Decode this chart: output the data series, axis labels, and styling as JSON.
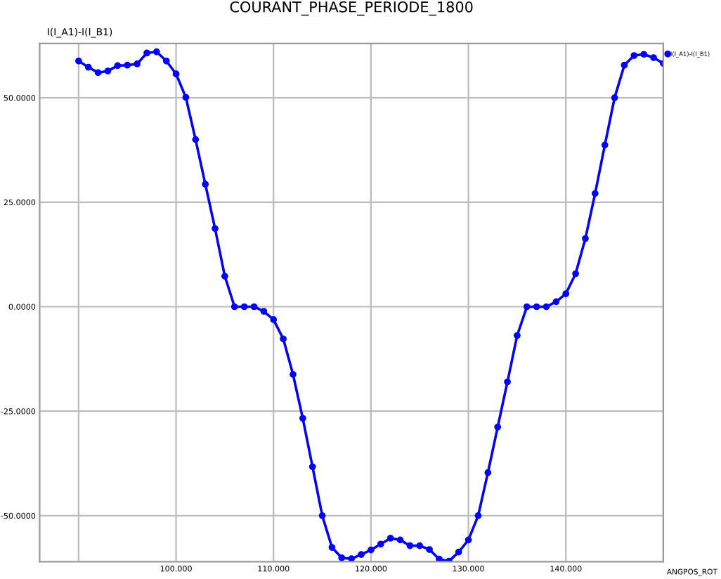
{
  "chart_data": {
    "type": "line",
    "title": "COURANT_PHASE_PERIODE_1800",
    "xlabel": "ANGPOS_ROT",
    "ylabel": "I(I_A1)-I(I_B1)",
    "x": [
      90,
      91,
      92,
      93,
      94,
      95,
      96,
      97,
      98,
      99,
      100,
      101,
      102,
      103,
      104,
      105,
      106,
      107,
      108,
      109,
      110,
      111,
      112,
      113,
      114,
      115,
      116,
      117,
      118,
      119,
      120,
      121,
      122,
      123,
      124,
      125,
      126,
      127,
      128,
      129,
      130,
      131,
      132,
      133,
      134,
      135,
      136,
      137,
      138,
      139,
      140,
      141,
      142,
      143,
      144,
      145,
      146,
      147,
      148,
      149,
      150
    ],
    "series": [
      {
        "name": "I(I_A1)-I(I_B1)",
        "color": "#0000ff",
        "values": [
          58.8,
          57.3,
          56,
          56.4,
          57.7,
          57.8,
          58.1,
          60.7,
          61,
          58.8,
          55.7,
          50.1,
          40,
          29.3,
          18.7,
          7.3,
          0,
          0,
          0,
          -1.1,
          -3.1,
          -7.7,
          -16.2,
          -26.7,
          -38.3,
          -50,
          -57.6,
          -60.1,
          -60.3,
          -59.3,
          -58.2,
          -56.8,
          -55.4,
          -55.8,
          -57.2,
          -57.2,
          -58.1,
          -60.4,
          -60.9,
          -58.7,
          -55.8,
          -50,
          -39.7,
          -28.8,
          -18,
          -6.9,
          0,
          0,
          0,
          1.2,
          3.1,
          7.9,
          16.3,
          27.1,
          38.7,
          50,
          57.8,
          60.1,
          60.4,
          59.6,
          58.2
        ]
      }
    ],
    "xlim": [
      86,
      150
    ],
    "ylim": [
      -61,
      63
    ],
    "xticks": [
      {
        "value": 90,
        "label": null
      },
      {
        "value": 100,
        "label": "100.000"
      },
      {
        "value": 110,
        "label": "110.000"
      },
      {
        "value": 120,
        "label": "120.000"
      },
      {
        "value": 130,
        "label": "130.000"
      },
      {
        "value": 140,
        "label": "140.000"
      },
      {
        "value": 150,
        "label": null
      }
    ],
    "yticks": [
      {
        "value": -50,
        "label": "-50.0000"
      },
      {
        "value": -25,
        "label": "-25.0000"
      },
      {
        "value": 0,
        "label": "0.0000"
      },
      {
        "value": 25,
        "label": "25.0000"
      },
      {
        "value": 50,
        "label": "50.0000"
      }
    ],
    "grid": true,
    "legend": "top right",
    "marker": "circle",
    "line_style": "solid"
  }
}
